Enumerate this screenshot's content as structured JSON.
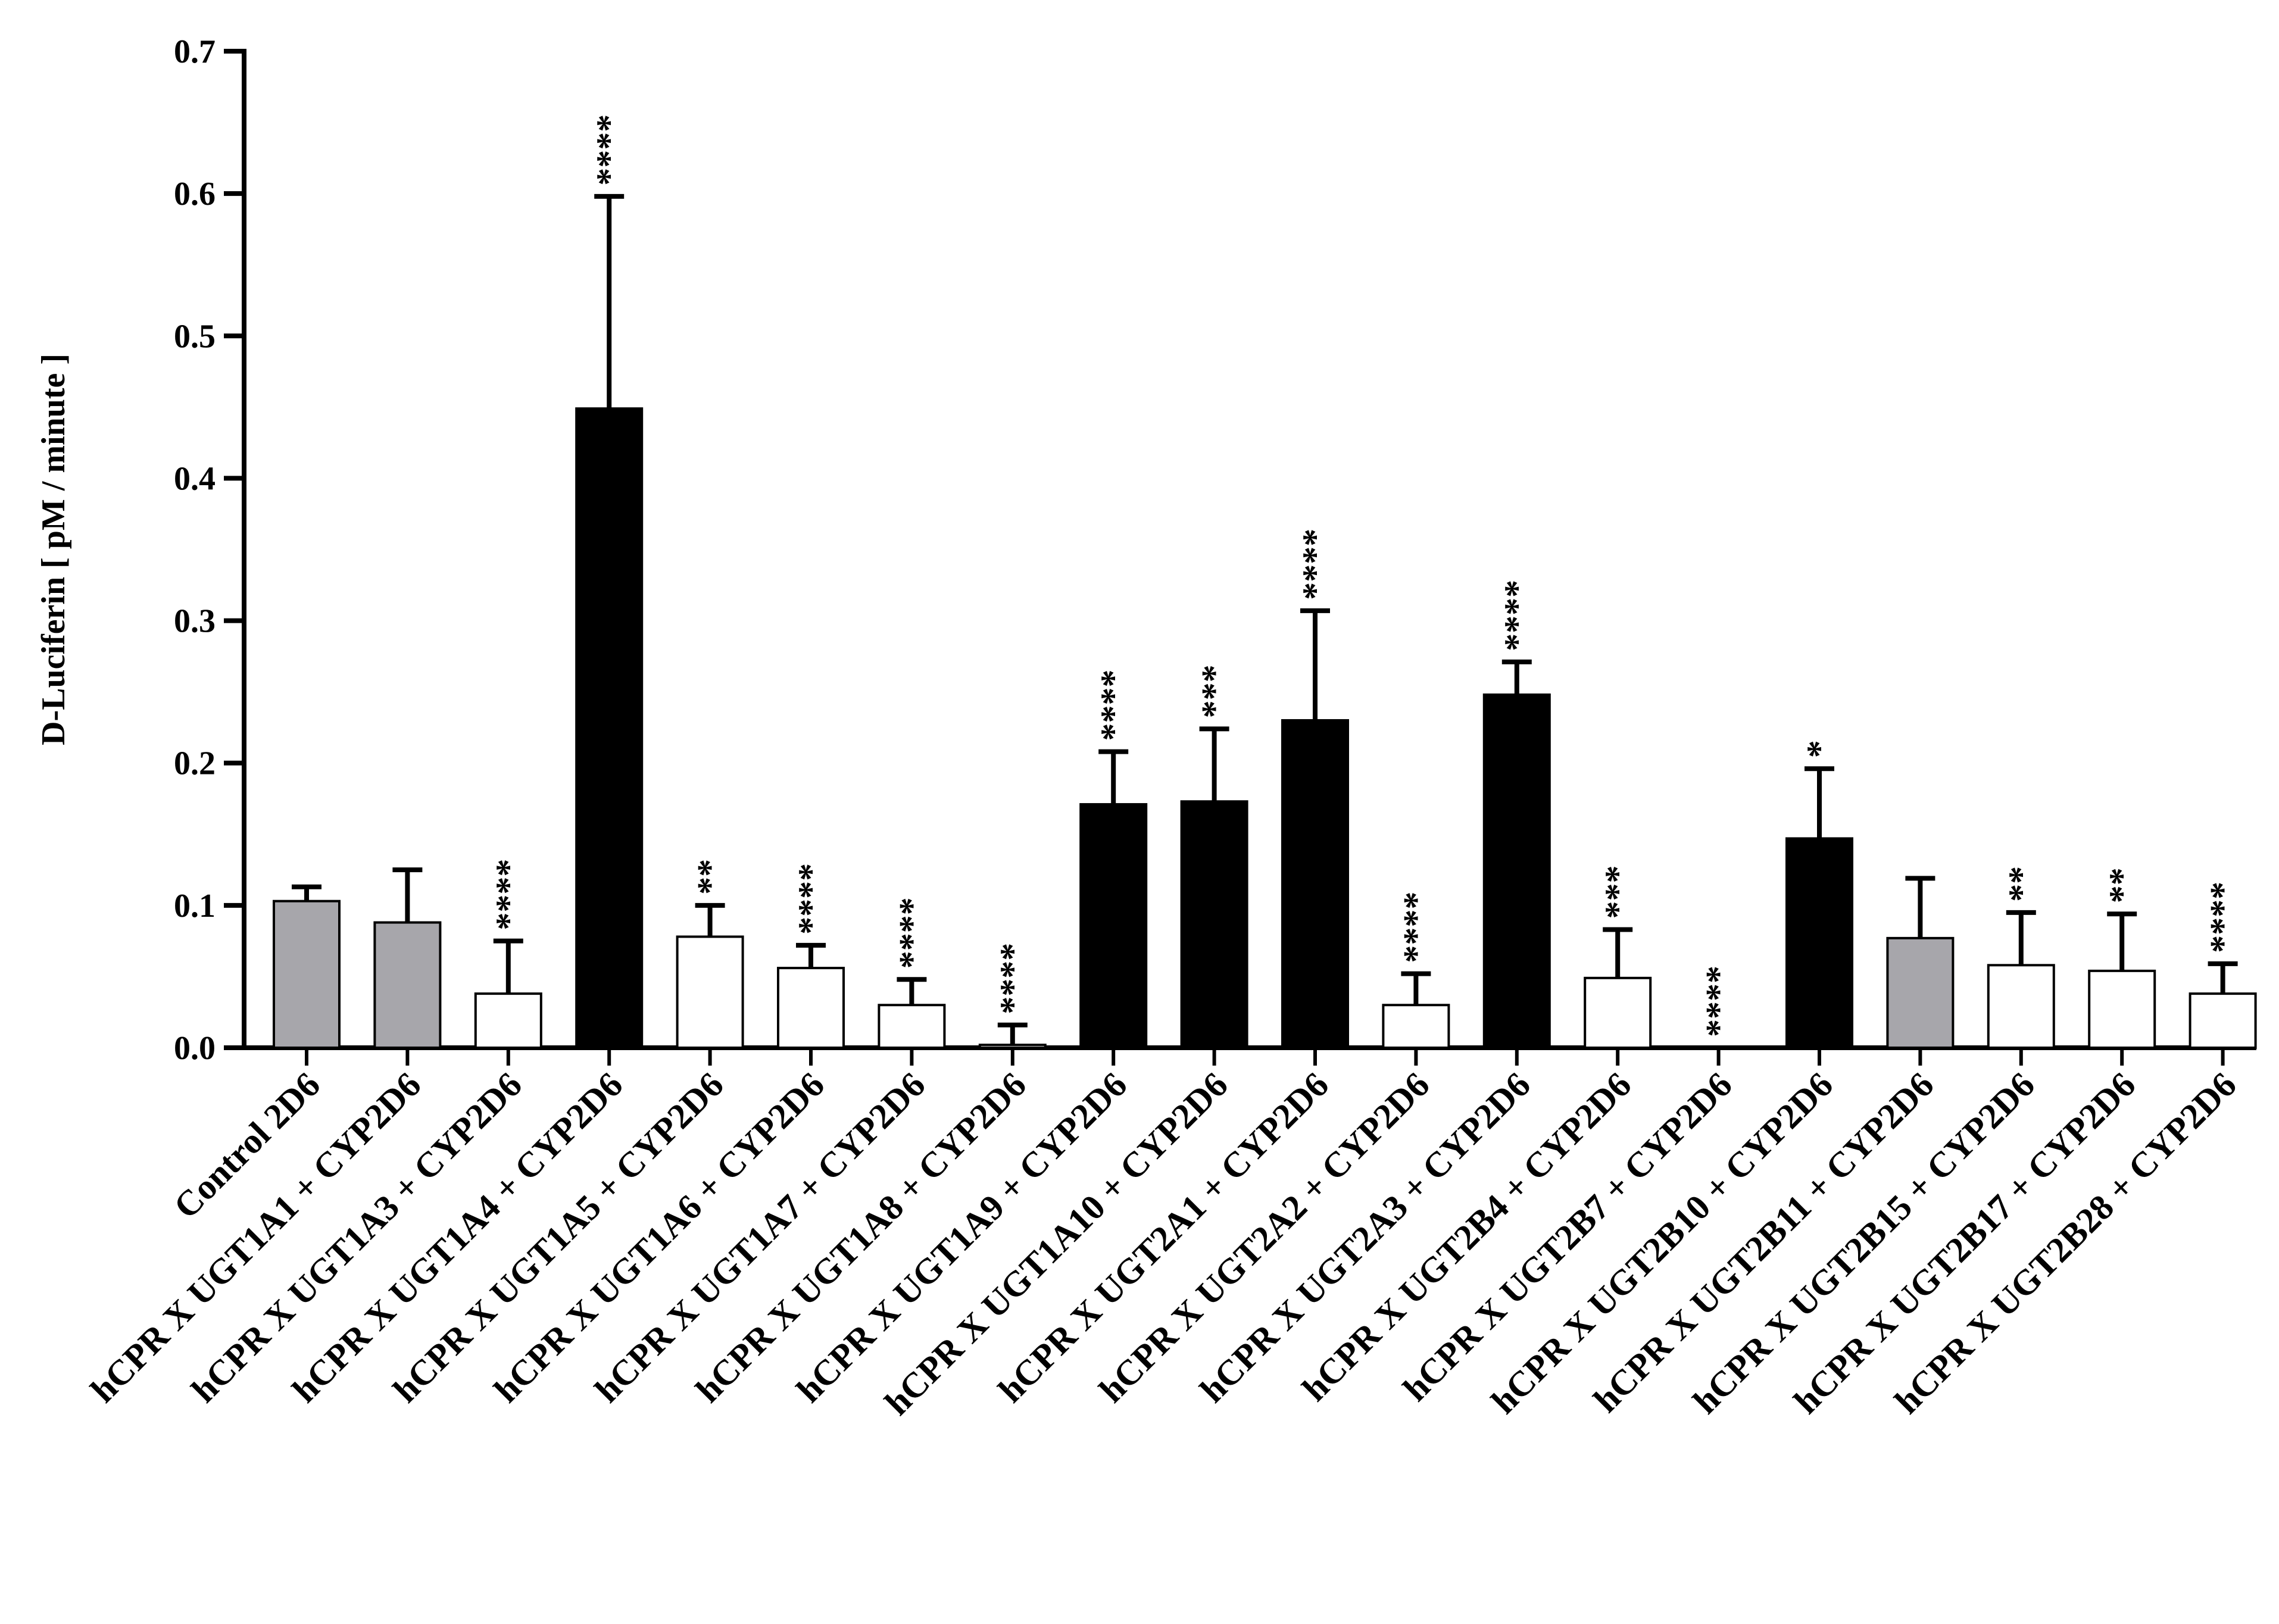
{
  "chart_data": {
    "type": "bar",
    "title": "",
    "xlabel": "",
    "ylabel": "D-Luciferin [ pM / minute ]",
    "ylim": [
      0,
      0.7
    ],
    "yticks": [
      "0.0",
      "0.1",
      "0.2",
      "0.3",
      "0.4",
      "0.5",
      "0.6",
      "0.7"
    ],
    "grid": false,
    "legend": "none",
    "colors": {
      "gray": "#a7a6ab",
      "black": "#000000",
      "white": "#ffffff",
      "stroke": "#000000"
    },
    "categories": [
      "Control 2D6",
      "hCPR X UGT1A1 + CYP2D6",
      "hCPR X UGT1A3 + CYP2D6",
      "hCPR X UGT1A4 + CYP2D6",
      "hCPR X UGT1A5 + CYP2D6",
      "hCPR X UGT1A6 + CYP2D6",
      "hCPR X UGT1A7 + CYP2D6",
      "hCPR X UGT1A8 + CYP2D6",
      "hCPR X UGT1A9 + CYP2D6",
      "hCPR X UGT1A10 + CYP2D6",
      "hCPR X UGT2A1 + CYP2D6",
      "hCPR X UGT2A2 + CYP2D6",
      "hCPR X UGT2A3 + CYP2D6",
      "hCPR X UGT2B4 + CYP2D6",
      "hCPR X UGT2B7 + CYP2D6",
      "hCPR X UGT2B10 + CYP2D6",
      "hCPR X UGT2B11 + CYP2D6",
      "hCPR X UGT2B15 + CYP2D6",
      "hCPR X UGT2B17 + CYP2D6",
      "hCPR X UGT2B28 + CYP2D6"
    ],
    "values": [
      0.103,
      0.088,
      0.038,
      0.449,
      0.078,
      0.056,
      0.03,
      0.002,
      0.171,
      0.173,
      0.23,
      0.03,
      0.248,
      0.049,
      0.0,
      0.147,
      0.077,
      0.058,
      0.054,
      0.038
    ],
    "errors": [
      0.01,
      0.037,
      0.037,
      0.149,
      0.022,
      0.016,
      0.018,
      0.014,
      0.037,
      0.051,
      0.077,
      0.022,
      0.023,
      0.034,
      0.0,
      0.049,
      0.042,
      0.037,
      0.04,
      0.021
    ],
    "fills": [
      "gray",
      "gray",
      "white",
      "black",
      "white",
      "white",
      "white",
      "white",
      "black",
      "black",
      "black",
      "white",
      "black",
      "white",
      "white",
      "black",
      "gray",
      "white",
      "white",
      "white"
    ],
    "significance": [
      "",
      "",
      "****",
      "****",
      "**",
      "****",
      "****",
      "****",
      "****",
      "***",
      "****",
      "****",
      "****",
      "***",
      "****",
      "*",
      "",
      "**",
      "**",
      "****"
    ]
  }
}
